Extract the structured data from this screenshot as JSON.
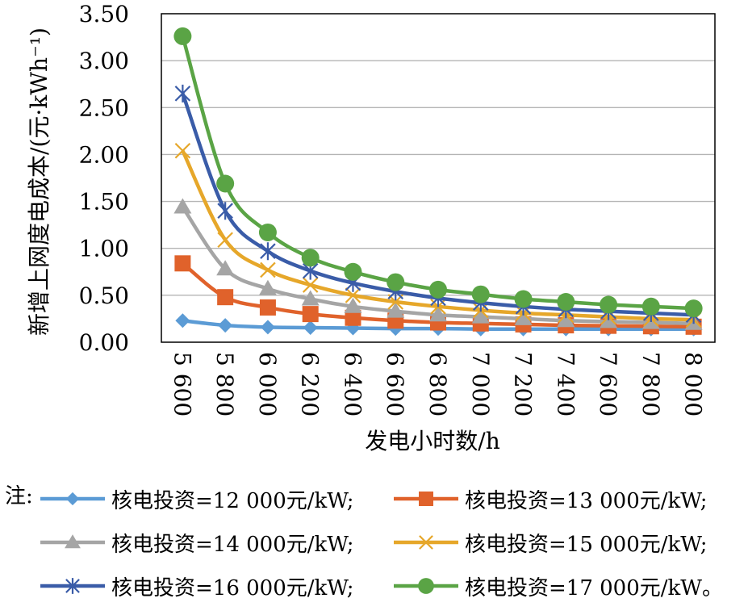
{
  "chart_data": {
    "type": "line",
    "xlabel": "发电小时数/h",
    "ylabel": "新增上网度电成本/(元·kWh⁻¹)",
    "categories": [
      "5 600",
      "5 800",
      "6 000",
      "6 200",
      "6 400",
      "6 600",
      "6 800",
      "7 000",
      "7 200",
      "7 400",
      "7 600",
      "7 800",
      "8 000"
    ],
    "ylim": [
      0,
      3.5
    ],
    "yticks": [
      "0.00",
      "0.50",
      "1.00",
      "1.50",
      "2.00",
      "2.50",
      "3.00",
      "3.50"
    ],
    "grid": true,
    "legend_position": "bottom",
    "legend_prefix": "注:",
    "series": [
      {
        "name": "核电投资=12 000元/kW;",
        "color": "#5b9bd5",
        "marker": "diamond",
        "values": [
          0.23,
          0.18,
          0.16,
          0.155,
          0.15,
          0.145,
          0.145,
          0.14,
          0.14,
          0.14,
          0.14,
          0.14,
          0.14
        ]
      },
      {
        "name": "核电投资=13 000元/kW;",
        "color": "#e0622b",
        "marker": "square",
        "values": [
          0.84,
          0.48,
          0.37,
          0.3,
          0.26,
          0.23,
          0.21,
          0.2,
          0.19,
          0.18,
          0.175,
          0.17,
          0.165
        ]
      },
      {
        "name": "核电投资=14 000元/kW;",
        "color": "#a5a5a5",
        "marker": "triangle",
        "values": [
          1.44,
          0.78,
          0.57,
          0.46,
          0.38,
          0.33,
          0.29,
          0.27,
          0.25,
          0.23,
          0.22,
          0.21,
          0.2
        ]
      },
      {
        "name": "核电投资=15 000元/kW;",
        "color": "#e6a72a",
        "marker": "x",
        "values": [
          2.04,
          1.09,
          0.77,
          0.61,
          0.5,
          0.43,
          0.38,
          0.34,
          0.31,
          0.29,
          0.27,
          0.25,
          0.24
        ]
      },
      {
        "name": "核电投资=16 000元/kW;",
        "color": "#3a5ca8",
        "marker": "star",
        "values": [
          2.65,
          1.4,
          0.97,
          0.76,
          0.63,
          0.54,
          0.47,
          0.42,
          0.38,
          0.35,
          0.33,
          0.31,
          0.29
        ]
      },
      {
        "name": "核电投资=17 000元/kW。",
        "color": "#5aa445",
        "marker": "circle",
        "values": [
          3.26,
          1.69,
          1.17,
          0.9,
          0.75,
          0.64,
          0.56,
          0.51,
          0.46,
          0.43,
          0.4,
          0.38,
          0.36
        ]
      }
    ]
  }
}
